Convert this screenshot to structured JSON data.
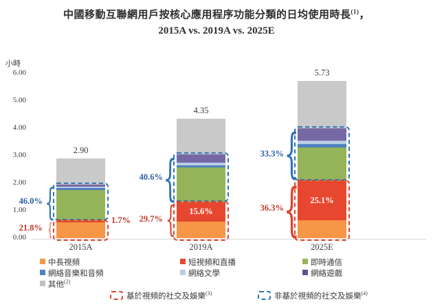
{
  "title": {
    "line1_main": "中國移動互聯網用戶按核心應用程序功能分類的日均使用時長",
    "line1_sup": "(1)",
    "line1_tail": "，",
    "line2": "2015A vs. 2019A vs. 2025E"
  },
  "axis": {
    "unit_label": "小時"
  },
  "chart_data": {
    "type": "bar",
    "stacked": true,
    "title": "中國移動互聯網用戶按核心應用程序功能分類的日均使用時長, 2015A vs. 2019A vs. 2025E",
    "ylabel": "小時",
    "ylim": [
      0,
      6
    ],
    "yticks": [
      "6.00",
      "5.00",
      "4.00",
      "3.00",
      "2.00",
      "1.00",
      "0.00"
    ],
    "categories": [
      "2015A",
      "2019A",
      "2025E"
    ],
    "totals": [
      2.9,
      4.35,
      5.73
    ],
    "total_labels": [
      "2.90",
      "4.35",
      "5.73"
    ],
    "series": [
      {
        "name": "中長視頻",
        "color": "#F79646",
        "values": [
          0.58,
          0.61,
          0.64
        ]
      },
      {
        "name": "短視頻和直播",
        "color": "#E8472F",
        "values": [
          0.05,
          0.68,
          1.44
        ]
      },
      {
        "name": "即時通信",
        "color": "#95B45A",
        "values": [
          1.13,
          1.28,
          1.22
        ]
      },
      {
        "name": "網絡音樂和音頻",
        "color": "#4F81BD",
        "values": [
          0.07,
          0.09,
          0.12
        ]
      },
      {
        "name": "網絡文學",
        "color": "#B9CDE5",
        "values": [
          0.04,
          0.09,
          0.14
        ]
      },
      {
        "name": "網絡遊戲",
        "color": "#7668A5",
        "values": [
          0.09,
          0.31,
          0.43
        ]
      },
      {
        "name": "其他",
        "color": "#C9C9C9",
        "values": [
          0.94,
          1.29,
          1.74
        ]
      }
    ],
    "groups": {
      "video_based": {
        "label": "基於視頻的社交及娛樂",
        "sup": "(3)",
        "series": [
          "中長視頻",
          "短視頻和直播"
        ],
        "pct": [
          "21.8%",
          "29.7%",
          "36.3%"
        ]
      },
      "non_video_based": {
        "label": "非基於視頻的社交及娛樂",
        "sup": "(4)",
        "series": [
          "即時通信",
          "網絡音樂和音頻",
          "網絡文學",
          "網絡遊戲"
        ],
        "pct": [
          "46.0%",
          "40.6%",
          "33.3%"
        ]
      }
    },
    "inner_labels": [
      null,
      "15.6%",
      "25.1%"
    ],
    "side_labels": [
      "1.7%",
      null,
      null
    ]
  },
  "legend": {
    "items": [
      {
        "label": "中長視頻",
        "color": "#F79646"
      },
      {
        "label": "短視頻和直播",
        "color": "#E8472F"
      },
      {
        "label": "即時通信",
        "color": "#95B45A"
      },
      {
        "label": "網絡音樂和音頻",
        "color": "#4F81BD"
      },
      {
        "label": "網絡文學",
        "color": "#B9CDE5"
      },
      {
        "label": "網絡遊戲",
        "color": "#64508B"
      },
      {
        "label": "其他",
        "sup": "(2)",
        "color": "#BFBFBF"
      }
    ]
  },
  "footnote_legend": {
    "items": [
      {
        "label": "基於視頻的社交及娛樂",
        "sup": "(3)",
        "color": "#DF4430"
      },
      {
        "label": "非基於視頻的社交及娛樂",
        "sup": "(4)",
        "color": "#2E73B8"
      }
    ]
  },
  "colors": {
    "label_red": "#C63A28",
    "label_blue": "#2A5FAA",
    "box_red": "#DF4430",
    "box_blue": "#2E73B8",
    "baseline": "#D6D6D6"
  }
}
